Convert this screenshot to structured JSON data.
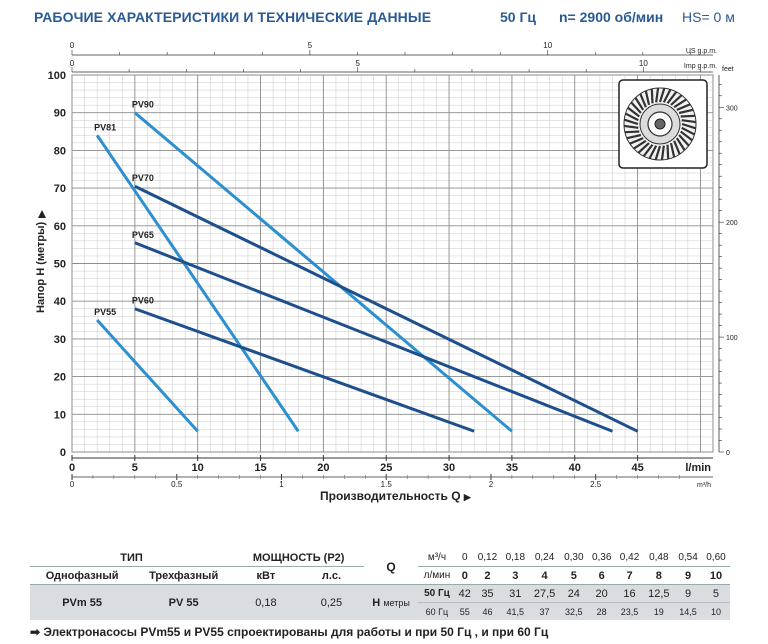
{
  "header": {
    "title": "РАБОЧИЕ ХАРАКТЕРИСТИКИ И ТЕХНИЧЕСКИЕ ДАННЫЕ",
    "freq": "50 Гц",
    "speed": "n= 2900 об/мин",
    "hs": "HS= 0 м"
  },
  "chart_data": {
    "type": "line",
    "title": "",
    "xlabel": "Производительность Q",
    "ylabel": "Напор H (метры)",
    "x_unit": "l/min",
    "xlim": [
      0,
      51
    ],
    "ylim": [
      0,
      100
    ],
    "x_ticks": [
      0,
      5,
      10,
      15,
      20,
      25,
      30,
      35,
      40,
      45
    ],
    "y_ticks": [
      0,
      10,
      20,
      30,
      40,
      50,
      60,
      70,
      80,
      90,
      100
    ],
    "secondary_axes": {
      "top_us": {
        "label": "US g.p.m.",
        "ticks": [
          0,
          5,
          10
        ]
      },
      "top_imp": {
        "label": "Imp g.p.m.",
        "ticks": [
          0,
          5,
          10
        ]
      },
      "bottom_m3h": {
        "label": "m³/h",
        "ticks": [
          "0",
          "0.5",
          "1",
          "1.5",
          "2",
          "2.5"
        ]
      },
      "right_feet": {
        "label": "feet",
        "ticks": [
          0,
          100,
          200,
          300
        ]
      }
    },
    "series": [
      {
        "name": "PV90",
        "color": "#2b8fd0",
        "points": [
          [
            5,
            90
          ],
          [
            35,
            5.5
          ]
        ]
      },
      {
        "name": "PV81",
        "color": "#2b8fd0",
        "points": [
          [
            2,
            84
          ],
          [
            18,
            5.5
          ]
        ]
      },
      {
        "name": "PV70",
        "color": "#1d4f8c",
        "points": [
          [
            5,
            70.5
          ],
          [
            45,
            5.5
          ]
        ]
      },
      {
        "name": "PV65",
        "color": "#1d4f8c",
        "points": [
          [
            5,
            55.5
          ],
          [
            43,
            5.5
          ]
        ]
      },
      {
        "name": "PV60",
        "color": "#1d4f8c",
        "points": [
          [
            5,
            38
          ],
          [
            32,
            5.5
          ]
        ]
      },
      {
        "name": "PV55",
        "color": "#2b8fd0",
        "points": [
          [
            2,
            35
          ],
          [
            10,
            5.5
          ]
        ]
      }
    ]
  },
  "table": {
    "type_header": "ТИП",
    "power_header": "МОЩНОСТЬ (P2)",
    "q_header": "Q",
    "single_phase": "Однофазный",
    "three_phase": "Трехфазный",
    "kw": "кВт",
    "hp": "л.с.",
    "q_units_m3": "м³/ч",
    "q_units_lmin": "л/мин",
    "q_m3h": [
      "0",
      "0,12",
      "0,18",
      "0,24",
      "0,30",
      "0,36",
      "0,42",
      "0,48",
      "0,54",
      "0,60"
    ],
    "q_lmin": [
      "0",
      "2",
      "3",
      "4",
      "5",
      "6",
      "7",
      "8",
      "9",
      "10"
    ],
    "row": {
      "single": "PVm 55",
      "three": "PV 55",
      "kw": "0,18",
      "hp": "0,25",
      "h_label": "H",
      "h_unit": "метры",
      "hz50": "50 Гц",
      "hz60": "60 Гц",
      "h50": [
        "42",
        "35",
        "31",
        "27,5",
        "24",
        "20",
        "16",
        "12,5",
        "9",
        "5"
      ],
      "h60": [
        "55",
        "46",
        "41,5",
        "37",
        "32,5",
        "28",
        "23,5",
        "19",
        "14,5",
        "10"
      ]
    }
  },
  "footnote": "➡ Электронасосы PVm55 и PV55 спроектированы для работы и при 50 Гц , и при 60 Гц"
}
